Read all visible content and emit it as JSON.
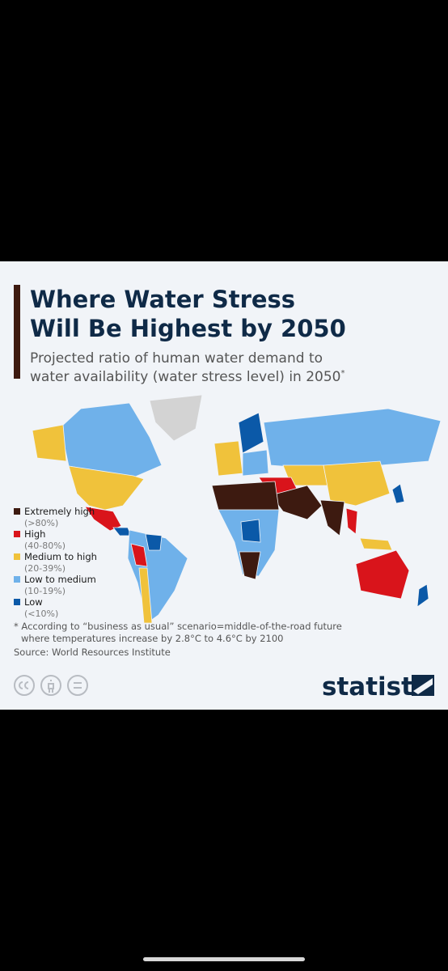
{
  "header": {
    "title_lines": [
      "Where Water Stress",
      "Will Be Highest by 2050"
    ],
    "subtitle_lines": [
      "Projected ratio of human water demand to",
      "water availability (water stress level) in 2050"
    ],
    "subtitle_mark": "*"
  },
  "legend": {
    "items": [
      {
        "label": "Extremely high",
        "range": "(>80%)",
        "color": "#3d1a10"
      },
      {
        "label": "High",
        "range": "(40-80%)",
        "color": "#d9141b"
      },
      {
        "label": "Medium to high",
        "range": "(20-39%)",
        "color": "#f0c23b"
      },
      {
        "label": "Low to medium",
        "range": "(10-19%)",
        "color": "#6fb1ea"
      },
      {
        "label": "Low",
        "range": "(<10%)",
        "color": "#0b59a8"
      }
    ]
  },
  "footer": {
    "note_lines": [
      "* According to “business as usual” scenario=middle-of-the-road future",
      "where temperatures increase by 2.8°C to 4.6°C by 2100"
    ],
    "source": "Source: World Resources Institute",
    "brand": "statista"
  }
}
